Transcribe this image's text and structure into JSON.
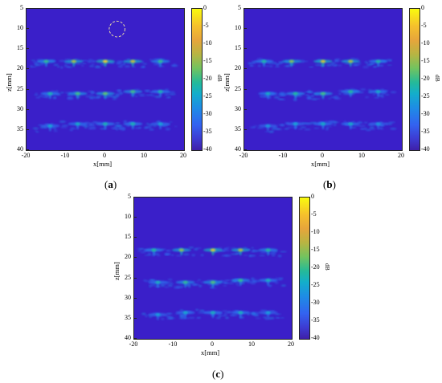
{
  "chart_data": [
    {
      "type": "heatmap",
      "caption": "(a)",
      "xlabel": "x[mm]",
      "ylabel": "z[mm]",
      "colorbar_label": "dB",
      "xlim": [
        -20,
        20
      ],
      "ylim": [
        5,
        40
      ],
      "y_reversed": true,
      "clim": [
        -40,
        0
      ],
      "xticks": [
        -20,
        -10,
        0,
        10,
        20
      ],
      "yticks": [
        5,
        10,
        15,
        20,
        25,
        30,
        35,
        40
      ],
      "cticks": [
        0,
        -5,
        -10,
        -15,
        -20,
        -25,
        -30,
        -35,
        -40
      ],
      "colormap": "parula",
      "annotation": {
        "type": "dashed-circle",
        "cx": 3,
        "cz": 10,
        "r": 2,
        "color": "#e8d8a8"
      },
      "scatterers": [
        {
          "x": -15,
          "z": 18,
          "db": -15
        },
        {
          "x": -8,
          "z": 18,
          "db": -8
        },
        {
          "x": 0,
          "z": 18,
          "db": -3
        },
        {
          "x": 7,
          "z": 18,
          "db": -6
        },
        {
          "x": 14,
          "z": 18,
          "db": -15
        },
        {
          "x": -14,
          "z": 26,
          "db": -18
        },
        {
          "x": -7,
          "z": 26,
          "db": -14
        },
        {
          "x": 0,
          "z": 26,
          "db": -12
        },
        {
          "x": 7,
          "z": 25.5,
          "db": -14
        },
        {
          "x": 14,
          "z": 25.5,
          "db": -18
        },
        {
          "x": -14,
          "z": 34,
          "db": -22
        },
        {
          "x": -7,
          "z": 33.5,
          "db": -20
        },
        {
          "x": 0,
          "z": 33.5,
          "db": -18
        },
        {
          "x": 7,
          "z": 33.5,
          "db": -18
        },
        {
          "x": 14,
          "z": 33.5,
          "db": -22
        }
      ]
    },
    {
      "type": "heatmap",
      "caption": "(b)",
      "xlabel": "x[mm]",
      "ylabel": "z[mm]",
      "colorbar_label": "dB",
      "xlim": [
        -20,
        20
      ],
      "ylim": [
        5,
        40
      ],
      "y_reversed": true,
      "clim": [
        -40,
        0
      ],
      "xticks": [
        -20,
        -10,
        0,
        10,
        20
      ],
      "yticks": [
        5,
        10,
        15,
        20,
        25,
        30,
        35,
        40
      ],
      "cticks": [
        0,
        -5,
        -10,
        -15,
        -20,
        -25,
        -30,
        -35,
        -40
      ],
      "colormap": "parula",
      "scatterers": [
        {
          "x": -15,
          "z": 18,
          "db": -17
        },
        {
          "x": -8,
          "z": 18,
          "db": -10
        },
        {
          "x": 0,
          "z": 18,
          "db": -5
        },
        {
          "x": 7,
          "z": 18,
          "db": -8
        },
        {
          "x": 14,
          "z": 18,
          "db": -17
        },
        {
          "x": -14,
          "z": 26,
          "db": -20
        },
        {
          "x": -7,
          "z": 26,
          "db": -16
        },
        {
          "x": 0,
          "z": 26,
          "db": -14
        },
        {
          "x": 7,
          "z": 25.5,
          "db": -16
        },
        {
          "x": 14,
          "z": 25.5,
          "db": -20
        },
        {
          "x": -14,
          "z": 34,
          "db": -24
        },
        {
          "x": -7,
          "z": 33.5,
          "db": -22
        },
        {
          "x": 0,
          "z": 33.5,
          "db": -20
        },
        {
          "x": 7,
          "z": 33.5,
          "db": -20
        },
        {
          "x": 14,
          "z": 33.5,
          "db": -24
        }
      ]
    },
    {
      "type": "heatmap",
      "caption": "(c)",
      "xlabel": "x[mm]",
      "ylabel": "z[mm]",
      "colorbar_label": "dB",
      "xlim": [
        -20,
        20
      ],
      "ylim": [
        5,
        40
      ],
      "y_reversed": true,
      "clim": [
        -40,
        0
      ],
      "xticks": [
        -20,
        -10,
        0,
        10,
        20
      ],
      "yticks": [
        5,
        10,
        15,
        20,
        25,
        30,
        35,
        40
      ],
      "cticks": [
        0,
        -5,
        -10,
        -15,
        -20,
        -25,
        -30,
        -35,
        -40
      ],
      "colormap": "parula",
      "scatterers": [
        {
          "x": -15,
          "z": 18,
          "db": -16
        },
        {
          "x": -8,
          "z": 18,
          "db": -9
        },
        {
          "x": 0,
          "z": 18,
          "db": -4
        },
        {
          "x": 7,
          "z": 18,
          "db": -7
        },
        {
          "x": 14,
          "z": 18,
          "db": -16
        },
        {
          "x": -14,
          "z": 26,
          "db": -19
        },
        {
          "x": -7,
          "z": 26,
          "db": -15
        },
        {
          "x": 0,
          "z": 26,
          "db": -13
        },
        {
          "x": 7,
          "z": 25.5,
          "db": -15
        },
        {
          "x": 14,
          "z": 25.5,
          "db": -19
        },
        {
          "x": -14,
          "z": 34,
          "db": -23
        },
        {
          "x": -7,
          "z": 33.5,
          "db": -21
        },
        {
          "x": 0,
          "z": 33.5,
          "db": -19
        },
        {
          "x": 7,
          "z": 33.5,
          "db": -19
        },
        {
          "x": 14,
          "z": 33.5,
          "db": -23
        }
      ]
    }
  ]
}
